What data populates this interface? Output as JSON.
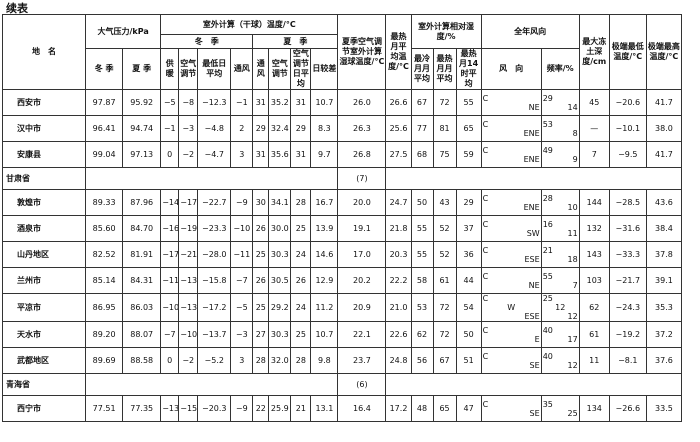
{
  "header": {
    "title": "续表"
  },
  "table": {
    "header": {
      "name": "地　名",
      "pressure": "大气压力/kPa",
      "dry_bulb": "室外计算（干球）温度/°C",
      "winter": "冬　季",
      "summer": "夏　季",
      "wet_bulb": "夏季空气调节室外计算湿球温度/°C",
      "hottest_month": "最热月平均温度/°C",
      "humidity": "室外计算相对湿度/%",
      "wind": "全年风向",
      "frost": "最大冻土深度/cm",
      "ext_min": "极端最低温度/°C",
      "ext_max": "极端最高温度/°C",
      "sub": [
        "冬 季",
        "夏 季",
        "供暖",
        "空气调节",
        "最低日平均",
        "通风",
        "通风",
        "空气调节",
        "空气调节日平均",
        "日较差",
        "最冷月月平均",
        "最热月月平均",
        "最热月14时平均",
        "风　向",
        "频率/%"
      ]
    },
    "rows": [
      {
        "name": "西安市",
        "cells": [
          "97.87",
          "95.92",
          "−5",
          "−8",
          "−12.3",
          "−1",
          "31",
          "35.2",
          "31",
          "10.7",
          "26.0",
          "26.6",
          "67",
          "72",
          "55",
          [
            "C",
            "NE"
          ],
          [
            "29",
            "14"
          ],
          "45",
          "−20.6",
          "41.7"
        ]
      },
      {
        "name": "汉中市",
        "cells": [
          "96.41",
          "94.74",
          "−1",
          "−3",
          "−4.8",
          "2",
          "29",
          "32.4",
          "29",
          "8.3",
          "26.3",
          "25.6",
          "77",
          "81",
          "65",
          [
            "C",
            "ENE"
          ],
          [
            "53",
            "8"
          ],
          "—",
          "−10.1",
          "38.0"
        ]
      },
      {
        "name": "安康县",
        "cells": [
          "99.04",
          "97.13",
          "0",
          "−2",
          "−4.7",
          "3",
          "31",
          "35.6",
          "31",
          "9.7",
          "26.8",
          "27.5",
          "68",
          "75",
          "59",
          [
            "C",
            "ENE"
          ],
          [
            "49",
            "9"
          ],
          "7",
          "−9.5",
          "41.7"
        ]
      },
      {
        "name": "甘肃省",
        "note": "(7)"
      },
      {
        "name": "敦煌市",
        "cells": [
          "89.33",
          "87.96",
          "−14",
          "−17",
          "−22.7",
          "−9",
          "30",
          "34.1",
          "28",
          "16.7",
          "20.0",
          "24.7",
          "50",
          "43",
          "29",
          [
            "C",
            "ENE"
          ],
          [
            "28",
            "10"
          ],
          "144",
          "−28.5",
          "43.6"
        ]
      },
      {
        "name": "酒泉市",
        "cells": [
          "85.60",
          "84.70",
          "−16",
          "−19",
          "−23.3",
          "−10",
          "26",
          "30.0",
          "25",
          "13.9",
          "19.1",
          "21.8",
          "55",
          "52",
          "37",
          [
            "C",
            "SW"
          ],
          [
            "16",
            "11"
          ],
          "132",
          "−31.6",
          "38.4"
        ]
      },
      {
        "name": "山丹地区",
        "cells": [
          "82.52",
          "81.91",
          "−17",
          "−21",
          "−28.0",
          "−11",
          "25",
          "30.3",
          "24",
          "14.6",
          "17.0",
          "20.3",
          "55",
          "52",
          "36",
          [
            "C",
            "ESE"
          ],
          [
            "21",
            "18"
          ],
          "143",
          "−33.3",
          "37.8"
        ]
      },
      {
        "name": "兰州市",
        "cells": [
          "85.14",
          "84.31",
          "−11",
          "−13",
          "−15.8",
          "−7",
          "26",
          "30.5",
          "26",
          "12.9",
          "20.2",
          "22.2",
          "58",
          "61",
          "44",
          [
            "C",
            "NE"
          ],
          [
            "55",
            "7"
          ],
          "103",
          "−21.7",
          "39.1"
        ]
      },
      {
        "name": "平凉市",
        "cells": [
          "86.95",
          "86.03",
          "−10",
          "−13",
          "−17.2",
          "−5",
          "25",
          "29.2",
          "24",
          "11.2",
          "20.9",
          "21.0",
          "53",
          "72",
          "54",
          [
            "C",
            "W",
            "ESE"
          ],
          [
            "25",
            "12",
            "12"
          ],
          "62",
          "−24.3",
          "35.3"
        ]
      },
      {
        "name": "天水市",
        "cells": [
          "89.20",
          "88.07",
          "−7",
          "−10",
          "−13.7",
          "−3",
          "27",
          "30.3",
          "25",
          "10.7",
          "22.1",
          "22.6",
          "62",
          "72",
          "50",
          [
            "C",
            "E"
          ],
          [
            "40",
            "17"
          ],
          "61",
          "−19.2",
          "37.2"
        ]
      },
      {
        "name": "武都地区",
        "cells": [
          "89.69",
          "88.58",
          "0",
          "−2",
          "−5.2",
          "3",
          "28",
          "32.0",
          "28",
          "9.8",
          "23.7",
          "24.8",
          "56",
          "67",
          "51",
          [
            "C",
            "SE"
          ],
          [
            "40",
            "12"
          ],
          "11",
          "−8.1",
          "37.6"
        ]
      },
      {
        "name": "青海省",
        "note": "(6)"
      },
      {
        "name": "西宁市",
        "cells": [
          "77.51",
          "77.35",
          "−13",
          "−15",
          "−20.3",
          "−9",
          "22",
          "25.9",
          "21",
          "13.1",
          "16.4",
          "17.2",
          "48",
          "65",
          "47",
          [
            "C",
            "SE"
          ],
          [
            "35",
            "25"
          ],
          "134",
          "−26.6",
          "33.5"
        ]
      }
    ]
  }
}
